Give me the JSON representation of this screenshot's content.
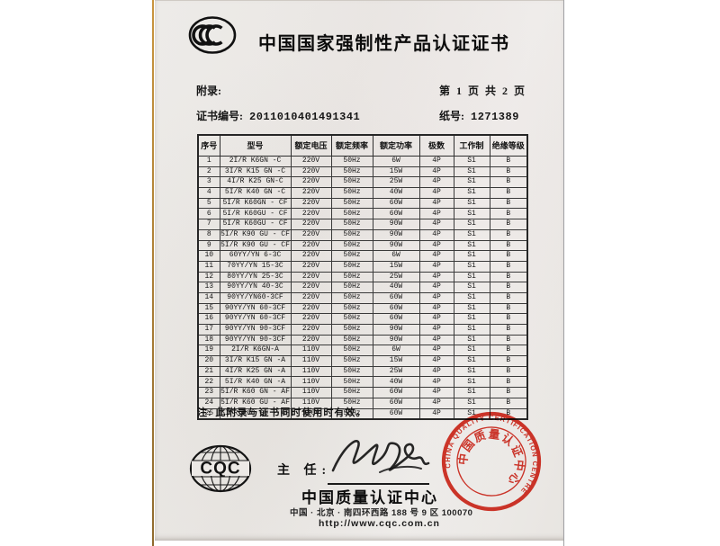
{
  "certificate": {
    "title": "中国国家强制性产品认证证书",
    "appendix_label": "附录:",
    "page_info": "第 1 页 共 2 页",
    "cert_no_label": "证书编号:",
    "cert_no": "2011010401491341",
    "paper_no_label": "纸号:",
    "paper_no": "1271389",
    "note": "注: 此附录与证书同时使用时有效。"
  },
  "table": {
    "headers": [
      "序号",
      "型号",
      "额定电压",
      "额定频率",
      "额定功率",
      "极数",
      "工作制",
      "绝缘等级"
    ],
    "rows": [
      [
        "1",
        "2I/R K6GN -C",
        "220V",
        "50Hz",
        "6W",
        "4P",
        "S1",
        "B"
      ],
      [
        "2",
        "3I/R K15 GN -C",
        "220V",
        "50Hz",
        "15W",
        "4P",
        "S1",
        "B"
      ],
      [
        "3",
        "4I/R K25 GN-C",
        "220V",
        "50Hz",
        "25W",
        "4P",
        "S1",
        "B"
      ],
      [
        "4",
        "5I/R K40 GN -C",
        "220V",
        "50Hz",
        "40W",
        "4P",
        "S1",
        "B"
      ],
      [
        "5",
        "5I/R K60GN - CF",
        "220V",
        "50Hz",
        "60W",
        "4P",
        "S1",
        "B"
      ],
      [
        "6",
        "5I/R K60GU - CF",
        "220V",
        "50Hz",
        "60W",
        "4P",
        "S1",
        "B"
      ],
      [
        "7",
        "5I/R K60GU - CF",
        "220V",
        "50Hz",
        "90W",
        "4P",
        "S1",
        "B"
      ],
      [
        "8",
        "5I/R K90 GU - CF",
        "220V",
        "50Hz",
        "90W",
        "4P",
        "S1",
        "B"
      ],
      [
        "9",
        "5I/R K90 GU - CF",
        "220V",
        "50Hz",
        "90W",
        "4P",
        "S1",
        "B"
      ],
      [
        "10",
        "60YY/YN 6-3C",
        "220V",
        "50Hz",
        "6W",
        "4P",
        "S1",
        "B"
      ],
      [
        "11",
        "70YY/YN 15-3C",
        "220V",
        "50Hz",
        "15W",
        "4P",
        "S1",
        "B"
      ],
      [
        "12",
        "80YY/YN 25-3C",
        "220V",
        "50Hz",
        "25W",
        "4P",
        "S1",
        "B"
      ],
      [
        "13",
        "90YY/YN 40-3C",
        "220V",
        "50Hz",
        "40W",
        "4P",
        "S1",
        "B"
      ],
      [
        "14",
        "90YY/YN60-3CF",
        "220V",
        "50Hz",
        "60W",
        "4P",
        "S1",
        "B"
      ],
      [
        "15",
        "90YY/YN 60-3CF",
        "220V",
        "50Hz",
        "60W",
        "4P",
        "S1",
        "B"
      ],
      [
        "16",
        "90YY/YN 60-3CF",
        "220V",
        "50Hz",
        "60W",
        "4P",
        "S1",
        "B"
      ],
      [
        "17",
        "90YY/YN 90-3CF",
        "220V",
        "50Hz",
        "90W",
        "4P",
        "S1",
        "B"
      ],
      [
        "18",
        "90YY/YN 90-3CF",
        "220V",
        "50Hz",
        "90W",
        "4P",
        "S1",
        "B"
      ],
      [
        "19",
        "2I/R K6GN-A",
        "110V",
        "50Hz",
        "6W",
        "4P",
        "S1",
        "B"
      ],
      [
        "20",
        "3I/R K15 GN -A",
        "110V",
        "50Hz",
        "15W",
        "4P",
        "S1",
        "B"
      ],
      [
        "21",
        "4I/R K25 GN -A",
        "110V",
        "50Hz",
        "25W",
        "4P",
        "S1",
        "B"
      ],
      [
        "22",
        "5I/R K40 GN -A",
        "110V",
        "50Hz",
        "40W",
        "4P",
        "S1",
        "B"
      ],
      [
        "23",
        "5I/R K60 GN - AF",
        "110V",
        "50Hz",
        "60W",
        "4P",
        "S1",
        "B"
      ],
      [
        "24",
        "5I/R K60 GU - AF",
        "110V",
        "50Hz",
        "60W",
        "4P",
        "S1",
        "B"
      ],
      [
        "25",
        "5I/R K60 GU - AF",
        "110V",
        "50Hz",
        "60W",
        "4P",
        "S1",
        "B"
      ]
    ]
  },
  "footer": {
    "director_label": "主 任:",
    "org_name": "中国质量认证中心",
    "address": "中国 · 北京 · 南四环西路 188 号 9 区 100070",
    "website": "http://www.cqc.com.cn",
    "cqc_logo_text": "CQC"
  },
  "stamp": {
    "arc_text": "CHINA QUALITY CERTIFICATION CENTRE",
    "cn_text": "中国质量认证中心",
    "color": "#d9281c"
  },
  "colors": {
    "paper": "#ebe8e5",
    "ink": "#161616",
    "stamp_red": "#d9281c",
    "scan_edge": "#a4783a"
  }
}
